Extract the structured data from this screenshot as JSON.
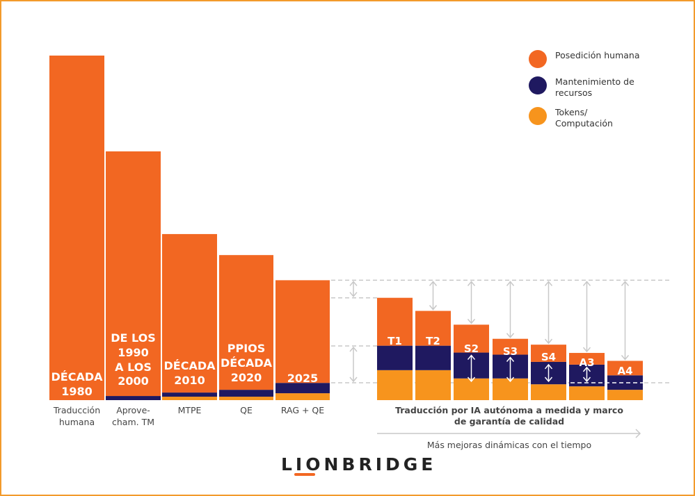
{
  "colors": {
    "posedicion": "#F26722",
    "mantenimiento": "#1F1960",
    "tokens": "#F7941D",
    "frame": "#F39A2B",
    "guides": "#C8C8C8"
  },
  "legend": [
    {
      "label": "Posedición humana",
      "color": "#F26722"
    },
    {
      "label": "Mantenimiento de\nrecursos",
      "color": "#1F1960"
    },
    {
      "label": "Tokens/\nComputación",
      "color": "#F7941D"
    }
  ],
  "chart_data": {
    "type": "stacked-bar",
    "units": "relative (unlabeled axis)",
    "series": [
      {
        "name": "Posedición humana",
        "values": [
          100,
          71.0,
          46.0,
          39.1,
          29.8,
          13.9,
          10.1,
          8.1,
          4.6,
          5.0,
          3.4,
          4.2
        ]
      },
      {
        "name": "Mantenimiento de recursos",
        "values": [
          0,
          1.2,
          1.2,
          2.0,
          3.0,
          7.1,
          7.1,
          7.5,
          6.9,
          6.5,
          6.3,
          4.2
        ]
      },
      {
        "name": "Tokens/Computación",
        "values": [
          0,
          0,
          1.0,
          1.0,
          2.0,
          8.7,
          8.7,
          6.3,
          6.3,
          4.6,
          4.0,
          3.0
        ]
      }
    ],
    "bar_labels": [
      [
        "DÉCADA",
        "1980"
      ],
      [
        "DE LOS",
        "1990",
        "A LOS",
        "2000"
      ],
      [
        "DÉCADA",
        "2010"
      ],
      [
        "PPIOS",
        "DÉCADA",
        "2020"
      ],
      [
        "2025"
      ],
      [
        "T1"
      ],
      [
        "T2"
      ],
      [
        "S2"
      ],
      [
        "S3"
      ],
      [
        "S4"
      ],
      [
        "A3"
      ],
      [
        "A4"
      ]
    ],
    "categories": [
      [
        "Traducción",
        "humana"
      ],
      [
        "Aprove-",
        "cham. TM"
      ],
      [
        "MTPE"
      ],
      [
        "QE"
      ],
      [
        "RAG + QE"
      ],
      [],
      [],
      [],
      [],
      [],
      [],
      []
    ],
    "group_label": [
      "Traducción por IA autónoma a medida y marco",
      "de garantía de calidad"
    ],
    "arrow_label": "Más mejoras dinámicas con el tiempo",
    "grid": false,
    "legend_position": "top-right"
  },
  "logo": "LIONBRIDGE"
}
